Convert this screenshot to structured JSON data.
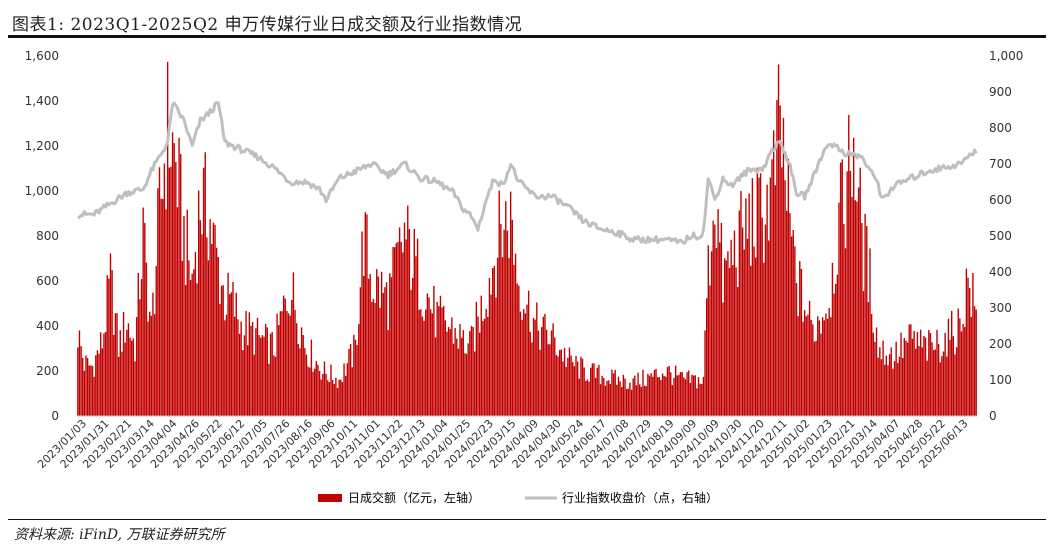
{
  "header": {
    "title": "图表1:  2023Q1-2025Q2 申万传媒行业日成交额及行业指数情况"
  },
  "footer": {
    "source": "资料来源: iFinD, 万联证券研究所"
  },
  "chart_data": {
    "type": "bar+line",
    "title": "2023Q1-2025Q2 申万传媒行业日成交额及行业指数情况",
    "x_tick_labels": [
      "2023/01/03",
      "2023/01/31",
      "2023/02/21",
      "2023/03/14",
      "2023/04/04",
      "2023/04/26",
      "2023/05/22",
      "2023/06/12",
      "2023/07/05",
      "2023/07/26",
      "2023/08/16",
      "2023/09/06",
      "2023/10/11",
      "2023/11/01",
      "2023/11/22",
      "2023/12/13",
      "2024/01/04",
      "2024/01/25",
      "2024/02/23",
      "2024/03/15",
      "2024/04/09",
      "2024/04/30",
      "2024/05/24",
      "2024/06/17",
      "2024/07/08",
      "2024/07/29",
      "2024/08/19",
      "2024/09/09",
      "2024/10/09",
      "2024/10/30",
      "2024/11/20",
      "2024/12/11",
      "2025/01/02",
      "2025/01/23",
      "2025/02/21",
      "2025/03/14",
      "2025/04/07",
      "2025/04/28",
      "2025/05/22",
      "2025/06/13"
    ],
    "left_axis": {
      "min": 0,
      "max": 1600,
      "step": 200,
      "tick_labels": [
        "0",
        "200",
        "400",
        "600",
        "800",
        "1,000",
        "1,200",
        "1,400",
        "1,600"
      ]
    },
    "right_axis": {
      "min": 0,
      "max": 1000,
      "step": 100,
      "tick_labels": [
        "0",
        "100",
        "200",
        "300",
        "400",
        "500",
        "600",
        "700",
        "800",
        "900",
        "1,000"
      ]
    },
    "grid": false,
    "legend_position": "bottom",
    "series": [
      {
        "name": "日成交额（亿元，左轴）",
        "kind": "bar",
        "axis": "left",
        "color": "#c00000",
        "anchors": [
          [
            0,
            370
          ],
          [
            4,
            230
          ],
          [
            9,
            220
          ],
          [
            15,
            330
          ],
          [
            20,
            600
          ],
          [
            25,
            310
          ],
          [
            30,
            420
          ],
          [
            35,
            310
          ],
          [
            40,
            800
          ],
          [
            45,
            380
          ],
          [
            50,
            900
          ],
          [
            55,
            1280
          ],
          [
            60,
            1120
          ],
          [
            65,
            800
          ],
          [
            70,
            600
          ],
          [
            75,
            960
          ],
          [
            80,
            900
          ],
          [
            85,
            700
          ],
          [
            90,
            520
          ],
          [
            95,
            500
          ],
          [
            100,
            400
          ],
          [
            110,
            350
          ],
          [
            120,
            300
          ],
          [
            130,
            580
          ],
          [
            140,
            300
          ],
          [
            150,
            200
          ],
          [
            160,
            160
          ],
          [
            170,
            300
          ],
          [
            175,
            800
          ],
          [
            180,
            600
          ],
          [
            190,
            520
          ],
          [
            200,
            800
          ],
          [
            210,
            600
          ],
          [
            220,
            430
          ],
          [
            230,
            380
          ],
          [
            240,
            300
          ],
          [
            250,
            550
          ],
          [
            260,
            850
          ],
          [
            265,
            880
          ],
          [
            270,
            600
          ],
          [
            280,
            400
          ],
          [
            290,
            350
          ],
          [
            300,
            250
          ],
          [
            310,
            200
          ],
          [
            320,
            180
          ],
          [
            330,
            160
          ],
          [
            340,
            150
          ],
          [
            350,
            170
          ],
          [
            360,
            200
          ],
          [
            370,
            160
          ],
          [
            380,
            160
          ],
          [
            383,
            150
          ],
          [
            385,
            550
          ],
          [
            390,
            1000
          ],
          [
            395,
            600
          ],
          [
            400,
            700
          ],
          [
            410,
            850
          ],
          [
            420,
            900
          ],
          [
            425,
            1000
          ],
          [
            430,
            1300
          ],
          [
            435,
            900
          ],
          [
            440,
            600
          ],
          [
            450,
            380
          ],
          [
            460,
            520
          ],
          [
            465,
            800
          ],
          [
            470,
            1000
          ],
          [
            475,
            1230
          ],
          [
            480,
            800
          ],
          [
            485,
            600
          ],
          [
            490,
            300
          ],
          [
            495,
            280
          ],
          [
            500,
            270
          ],
          [
            510,
            340
          ],
          [
            520,
            300
          ],
          [
            530,
            330
          ],
          [
            540,
            400
          ],
          [
            545,
            600
          ],
          [
            550,
            450
          ]
        ]
      },
      {
        "name": "行业指数收盘价（点，右轴）",
        "kind": "line",
        "axis": "right",
        "color": "#bfbfbf",
        "anchors": [
          [
            0,
            560
          ],
          [
            10,
            560
          ],
          [
            20,
            590
          ],
          [
            30,
            620
          ],
          [
            40,
            630
          ],
          [
            45,
            680
          ],
          [
            50,
            720
          ],
          [
            55,
            760
          ],
          [
            58,
            870
          ],
          [
            65,
            820
          ],
          [
            70,
            750
          ],
          [
            75,
            820
          ],
          [
            80,
            840
          ],
          [
            86,
            870
          ],
          [
            90,
            760
          ],
          [
            100,
            740
          ],
          [
            110,
            720
          ],
          [
            120,
            690
          ],
          [
            130,
            650
          ],
          [
            140,
            650
          ],
          [
            148,
            630
          ],
          [
            152,
            600
          ],
          [
            160,
            660
          ],
          [
            170,
            680
          ],
          [
            180,
            700
          ],
          [
            190,
            670
          ],
          [
            200,
            700
          ],
          [
            210,
            660
          ],
          [
            220,
            650
          ],
          [
            230,
            620
          ],
          [
            235,
            580
          ],
          [
            240,
            560
          ],
          [
            245,
            520
          ],
          [
            250,
            600
          ],
          [
            255,
            660
          ],
          [
            260,
            640
          ],
          [
            265,
            700
          ],
          [
            270,
            650
          ],
          [
            280,
            610
          ],
          [
            290,
            610
          ],
          [
            300,
            580
          ],
          [
            310,
            540
          ],
          [
            320,
            520
          ],
          [
            330,
            510
          ],
          [
            340,
            490
          ],
          [
            350,
            490
          ],
          [
            360,
            490
          ],
          [
            370,
            480
          ],
          [
            375,
            500
          ],
          [
            380,
            500
          ],
          [
            383,
            510
          ],
          [
            386,
            660
          ],
          [
            390,
            600
          ],
          [
            395,
            660
          ],
          [
            400,
            640
          ],
          [
            410,
            680
          ],
          [
            420,
            690
          ],
          [
            425,
            740
          ],
          [
            430,
            760
          ],
          [
            435,
            710
          ],
          [
            440,
            620
          ],
          [
            445,
            610
          ],
          [
            450,
            660
          ],
          [
            455,
            720
          ],
          [
            460,
            760
          ],
          [
            470,
            730
          ],
          [
            480,
            720
          ],
          [
            485,
            680
          ],
          [
            490,
            650
          ],
          [
            492,
            600
          ],
          [
            500,
            640
          ],
          [
            510,
            660
          ],
          [
            520,
            680
          ],
          [
            530,
            690
          ],
          [
            540,
            700
          ],
          [
            545,
            720
          ],
          [
            550,
            735
          ]
        ]
      }
    ]
  }
}
